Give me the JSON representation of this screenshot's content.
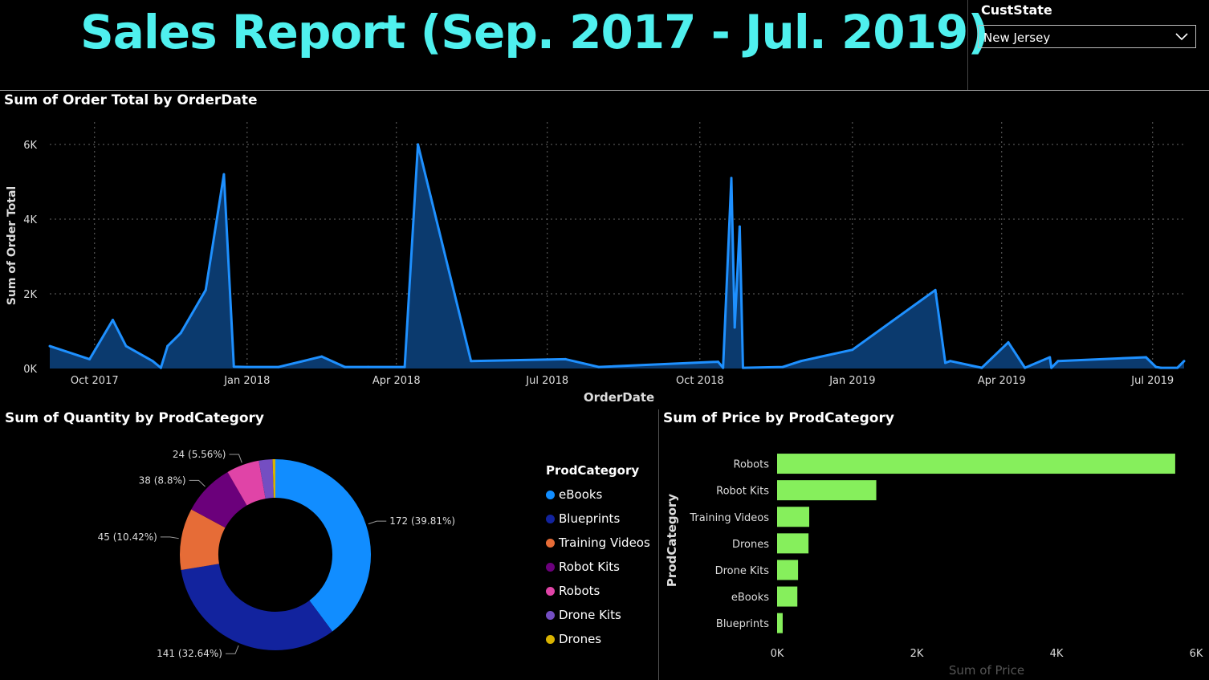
{
  "report": {
    "title": "Sales Report (Sep. 2017 - Jul. 2019)"
  },
  "slicer": {
    "label": "CustState",
    "value": "New Jersey"
  },
  "colors": {
    "title": "#4ff0ee",
    "line": "#1e90ff",
    "area": "#0b3a6e",
    "bar": "#86ef5c"
  },
  "chart_data": [
    {
      "type": "area",
      "title": "Sum of Order Total by OrderDate",
      "xlabel": "OrderDate",
      "ylabel": "Sum of Order Total",
      "y_ticks": [
        "0K",
        "2K",
        "4K",
        "6K"
      ],
      "x_ticks": [
        "Oct 2017",
        "Jan 2018",
        "Apr 2018",
        "Jul 2018",
        "Oct 2018",
        "Jan 2019",
        "Apr 2019",
        "Jul 2019"
      ],
      "ylim": [
        0,
        6600
      ],
      "grid": true,
      "x": [
        "2017-09-04",
        "2017-09-28",
        "2017-10-12",
        "2017-10-20",
        "2017-11-05",
        "2017-11-10",
        "2017-11-14",
        "2017-11-22",
        "2017-12-07",
        "2017-12-18",
        "2017-12-24",
        "2018-01-01",
        "2018-01-20",
        "2018-02-15",
        "2018-03-01",
        "2018-03-15",
        "2018-04-06",
        "2018-04-14",
        "2018-05-16",
        "2018-07-12",
        "2018-08-01",
        "2018-10-12",
        "2018-10-15",
        "2018-10-20",
        "2018-10-22",
        "2018-10-25",
        "2018-10-27",
        "2018-11-20",
        "2018-12-01",
        "2019-01-01",
        "2019-02-20",
        "2019-02-26",
        "2019-03-01",
        "2019-03-20",
        "2019-04-05",
        "2019-04-15",
        "2019-04-30",
        "2019-05-01",
        "2019-05-05",
        "2019-06-27",
        "2019-07-03",
        "2019-07-06",
        "2019-07-16",
        "2019-07-20"
      ],
      "values": [
        600,
        250,
        1300,
        600,
        200,
        20,
        600,
        950,
        2100,
        5200,
        50,
        40,
        40,
        320,
        40,
        40,
        40,
        6000,
        200,
        250,
        40,
        180,
        20,
        5100,
        1100,
        3800,
        20,
        40,
        200,
        500,
        2100,
        150,
        200,
        20,
        700,
        20,
        300,
        20,
        200,
        300,
        40,
        20,
        20,
        200
      ]
    },
    {
      "type": "pie",
      "title": "Sum of Quantity by ProdCategory",
      "legend_title": "ProdCategory",
      "legend": "right",
      "categories": [
        "eBooks",
        "Blueprints",
        "Training Videos",
        "Robot Kits",
        "Robots",
        "Drone Kits",
        "Drones"
      ],
      "values": [
        172,
        141,
        45,
        38,
        24,
        10,
        2
      ],
      "colors": [
        "#118dff",
        "#12239e",
        "#e66c37",
        "#6b007b",
        "#e044a7",
        "#744ec2",
        "#d9b300"
      ],
      "labels": [
        "172 (39.81%)",
        "141 (32.64%)",
        "45 (10.42%)",
        "38 (8.8%)",
        "24 (5.56%)"
      ]
    },
    {
      "type": "bar",
      "orientation": "horizontal",
      "title": "Sum of Price by ProdCategory",
      "xlabel": "Sum of Price",
      "ylabel": "ProdCategory",
      "categories": [
        "Robots",
        "Robot Kits",
        "Training Videos",
        "Drones",
        "Drone Kits",
        "eBooks",
        "Blueprints"
      ],
      "values": [
        5700,
        1420,
        460,
        450,
        300,
        290,
        80
      ],
      "x_ticks": [
        "0K",
        "2K",
        "4K",
        "6K"
      ],
      "xlim": [
        0,
        6000
      ]
    }
  ]
}
